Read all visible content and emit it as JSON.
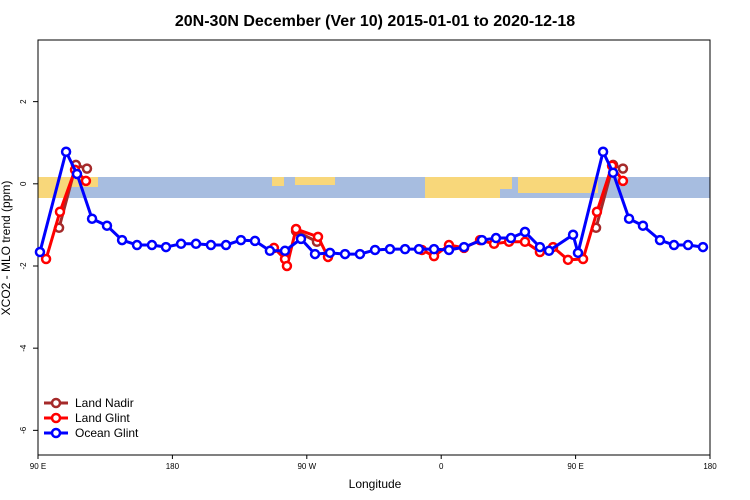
{
  "chart_data": {
    "type": "line",
    "title": "20N-30N December (Ver 10)   2015-01-01 to 2020-12-18",
    "x_label": "Longitude",
    "y_label": "XCO2 - MLO trend (ppm)",
    "xlim": [
      90,
      540
    ],
    "xticks": [
      {
        "value": 90,
        "label": "90 E"
      },
      {
        "value": 180,
        "label": "180"
      },
      {
        "value": 270,
        "label": "90 W"
      },
      {
        "value": 360,
        "label": "0"
      },
      {
        "value": 450,
        "label": "90 E"
      },
      {
        "value": 540,
        "label": "180"
      }
    ],
    "ylim": [
      -6.6,
      3.5
    ],
    "yticks": [
      -6,
      -4,
      -2,
      0,
      2
    ],
    "legend": "bottom-left",
    "series": [
      {
        "name": "Land Nadir",
        "color": "#a52a2a",
        "x": [
          104.1,
          115.4,
          122.8,
          null,
          262.8,
          276.8,
          null,
          463.7,
          475.1,
          481.7
        ],
        "values": [
          -1.07,
          0.46,
          0.37,
          null,
          -1.15,
          -1.41,
          null,
          -1.07,
          0.46,
          0.37
        ]
      },
      {
        "name": "Land Glint",
        "color": "#ff0000",
        "x": [
          95.4,
          104.7,
          114.8,
          122.1,
          null,
          248.0,
          255.4,
          256.7,
          262.8,
          277.5,
          284.2,
          null,
          347.1,
          355.2,
          365.2,
          375.3,
          386.0,
          395.4,
          405.4,
          416.1,
          426.1,
          434.9,
          444.9,
          455.0,
          464.3,
          474.4,
          481.7
        ],
        "values": [
          -1.83,
          -0.68,
          0.34,
          0.07,
          null,
          -1.56,
          -1.83,
          -2.0,
          -1.1,
          -1.29,
          -1.78,
          null,
          -1.61,
          -1.76,
          -1.49,
          -1.56,
          -1.37,
          -1.46,
          -1.41,
          -1.41,
          -1.66,
          -1.54,
          -1.85,
          -1.83,
          -0.68,
          0.44,
          0.07
        ]
      },
      {
        "name": "Ocean Glint",
        "color": "#0000ff",
        "x": [
          91.3,
          108.8,
          116.1,
          126.2,
          136.2,
          146.3,
          156.3,
          166.3,
          175.7,
          185.8,
          195.8,
          205.8,
          215.9,
          225.9,
          235.3,
          245.3,
          255.4,
          266.1,
          275.5,
          285.5,
          295.6,
          305.6,
          315.7,
          325.7,
          335.8,
          345.1,
          355.2,
          365.2,
          375.3,
          387.3,
          396.7,
          406.7,
          416.1,
          426.1,
          432.2,
          448.3,
          451.6,
          468.4,
          475.1,
          485.8,
          495.1,
          506.5,
          515.9,
          525.3,
          535.3
        ],
        "values": [
          -1.66,
          0.78,
          0.24,
          -0.85,
          -1.02,
          -1.37,
          -1.49,
          -1.49,
          -1.54,
          -1.46,
          -1.46,
          -1.49,
          -1.49,
          -1.37,
          -1.39,
          -1.63,
          -1.63,
          -1.34,
          -1.71,
          -1.68,
          -1.71,
          -1.71,
          -1.61,
          -1.59,
          -1.59,
          -1.59,
          -1.59,
          -1.61,
          -1.54,
          -1.37,
          -1.32,
          -1.32,
          -1.17,
          -1.54,
          -1.63,
          -1.24,
          -1.68,
          0.78,
          0.27,
          -0.85,
          -1.02,
          -1.37,
          -1.49,
          -1.49,
          -1.54
        ]
      }
    ]
  }
}
